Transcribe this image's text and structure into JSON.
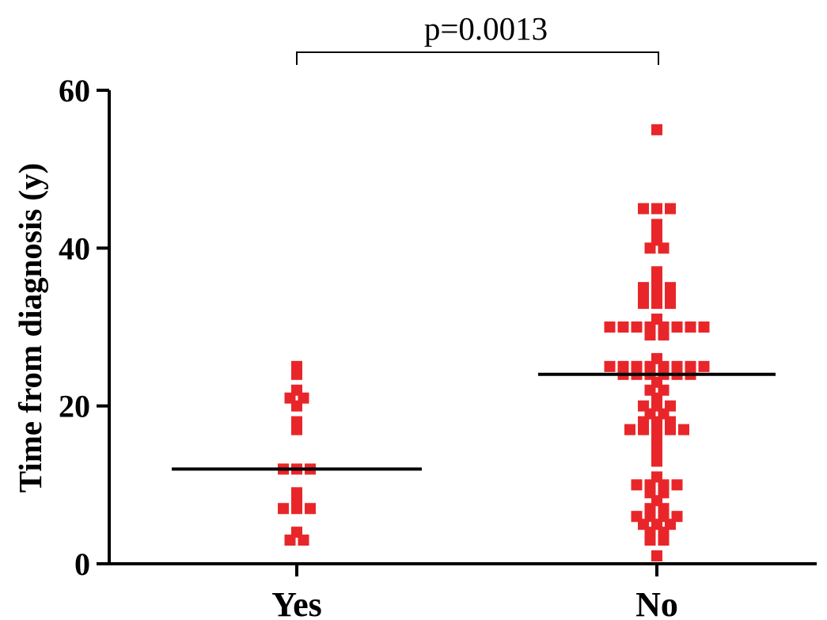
{
  "chart_data": {
    "type": "scatter",
    "title": "",
    "xlabel": "",
    "ylabel": "Time from diagnosis (y)",
    "ylim": [
      0,
      60
    ],
    "yticks": [
      "0",
      "20",
      "40",
      "60"
    ],
    "categories": [
      "Yes",
      "No"
    ],
    "grid": false,
    "marker_color": "#e8262a",
    "median_color": "#000000",
    "annotation": "p=0.0013",
    "groups": [
      {
        "category": "Yes",
        "median": 12,
        "values": [
          25,
          24,
          22,
          21,
          21,
          20,
          18,
          17,
          12,
          12,
          12,
          9,
          8,
          7,
          7,
          7,
          4,
          3,
          3
        ]
      },
      {
        "category": "No",
        "median": 24,
        "values": [
          55,
          45,
          45,
          45,
          43,
          42,
          41,
          40,
          40,
          37,
          36,
          35,
          35,
          35,
          34,
          34,
          34,
          33,
          33,
          33,
          31,
          30,
          30,
          30,
          30,
          30,
          30,
          30,
          30,
          29,
          29,
          26,
          25,
          25,
          25,
          25,
          25,
          25,
          25,
          25,
          24,
          24,
          24,
          24,
          24,
          24,
          23,
          22,
          22,
          21,
          20,
          20,
          20,
          19,
          19,
          18,
          18,
          18,
          17,
          17,
          17,
          17,
          17,
          16,
          15,
          14,
          13,
          11,
          10,
          10,
          10,
          10,
          9,
          9,
          8,
          7,
          7,
          6,
          6,
          6,
          6,
          5,
          5,
          5,
          4,
          4,
          3,
          3,
          1
        ]
      }
    ]
  }
}
